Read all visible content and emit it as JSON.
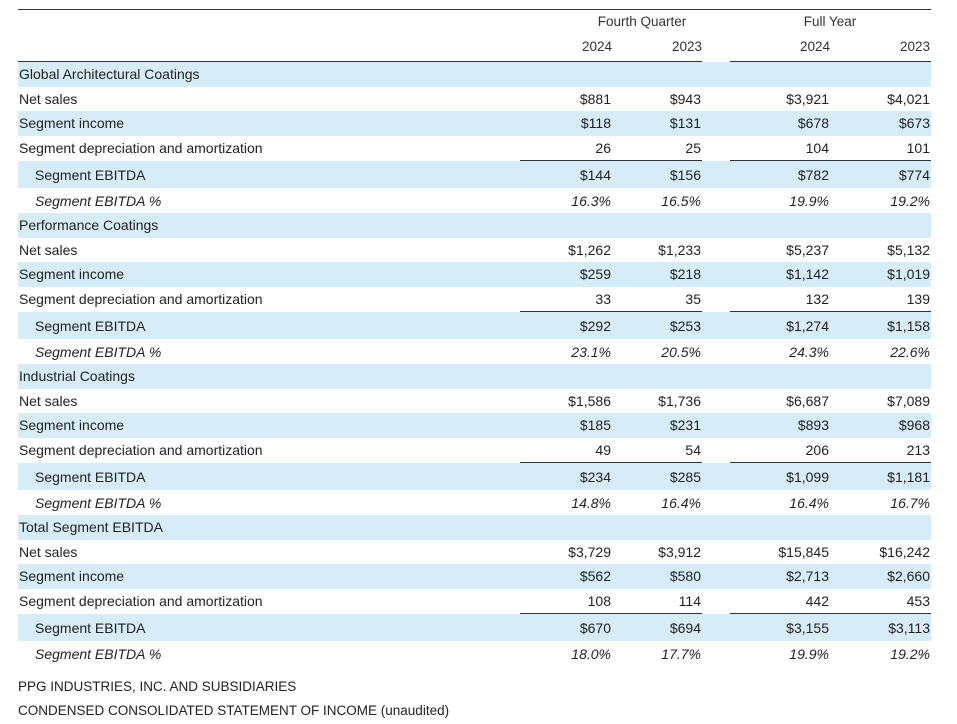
{
  "header": {
    "group_fourth_quarter": "Fourth Quarter",
    "group_full_year": "Full Year",
    "years": [
      "2024",
      "2023",
      "2024",
      "2023"
    ]
  },
  "rows": [
    {
      "type": "section",
      "label": "Global Architectural Coatings",
      "values": [
        "",
        "",
        "",
        ""
      ]
    },
    {
      "type": "line",
      "label": "Net sales",
      "values": [
        "$881",
        "$943",
        "$3,921",
        "$4,021"
      ]
    },
    {
      "type": "line",
      "label": "Segment income",
      "values": [
        "$118",
        "$131",
        "$678",
        "$673"
      ]
    },
    {
      "type": "line",
      "label": "Segment depreciation and amortization",
      "values": [
        "26",
        "25",
        "104",
        "101"
      ]
    },
    {
      "type": "ebitda",
      "label": "Segment EBITDA",
      "values": [
        "$144",
        "$156",
        "$782",
        "$774"
      ]
    },
    {
      "type": "pct",
      "label": "Segment EBITDA %",
      "values": [
        "16.3%",
        "16.5%",
        "19.9%",
        "19.2%"
      ]
    },
    {
      "type": "section",
      "label": "Performance Coatings",
      "values": [
        "",
        "",
        "",
        ""
      ]
    },
    {
      "type": "line",
      "label": "Net sales",
      "values": [
        "$1,262",
        "$1,233",
        "$5,237",
        "$5,132"
      ]
    },
    {
      "type": "line",
      "label": "Segment income",
      "values": [
        "$259",
        "$218",
        "$1,142",
        "$1,019"
      ]
    },
    {
      "type": "line",
      "label": "Segment depreciation and amortization",
      "values": [
        "33",
        "35",
        "132",
        "139"
      ]
    },
    {
      "type": "ebitda",
      "label": "Segment EBITDA",
      "values": [
        "$292",
        "$253",
        "$1,274",
        "$1,158"
      ]
    },
    {
      "type": "pct",
      "label": "Segment EBITDA %",
      "values": [
        "23.1%",
        "20.5%",
        "24.3%",
        "22.6%"
      ]
    },
    {
      "type": "section",
      "label": "Industrial Coatings",
      "values": [
        "",
        "",
        "",
        ""
      ]
    },
    {
      "type": "line",
      "label": "Net sales",
      "values": [
        "$1,586",
        "$1,736",
        "$6,687",
        "$7,089"
      ]
    },
    {
      "type": "line",
      "label": "Segment income",
      "values": [
        "$185",
        "$231",
        "$893",
        "$968"
      ]
    },
    {
      "type": "line",
      "label": "Segment depreciation and amortization",
      "values": [
        "49",
        "54",
        "206",
        "213"
      ]
    },
    {
      "type": "ebitda",
      "label": "Segment EBITDA",
      "values": [
        "$234",
        "$285",
        "$1,099",
        "$1,181"
      ]
    },
    {
      "type": "pct",
      "label": "Segment EBITDA %",
      "values": [
        "14.8%",
        "16.4%",
        "16.4%",
        "16.7%"
      ]
    },
    {
      "type": "section",
      "label": "Total Segment EBITDA",
      "values": [
        "",
        "",
        "",
        ""
      ]
    },
    {
      "type": "line",
      "label": "Net sales",
      "values": [
        "$3,729",
        "$3,912",
        "$15,845",
        "$16,242"
      ]
    },
    {
      "type": "line",
      "label": "Segment income",
      "values": [
        "$562",
        "$580",
        "$2,713",
        "$2,660"
      ]
    },
    {
      "type": "line",
      "label": "Segment depreciation and amortization",
      "values": [
        "108",
        "114",
        "442",
        "453"
      ]
    },
    {
      "type": "ebitda",
      "label": "Segment EBITDA",
      "values": [
        "$670",
        "$694",
        "$3,155",
        "$3,113"
      ]
    },
    {
      "type": "pct",
      "label": "Segment EBITDA %",
      "values": [
        "18.0%",
        "17.7%",
        "19.9%",
        "19.2%"
      ]
    }
  ],
  "footer": {
    "company": "PPG INDUSTRIES, INC. AND SUBSIDIARIES",
    "statement": "CONDENSED CONSOLIDATED STATEMENT OF INCOME (unaudited)"
  },
  "colors": {
    "band_blue": "#d6edf9",
    "rule": "#333333"
  }
}
